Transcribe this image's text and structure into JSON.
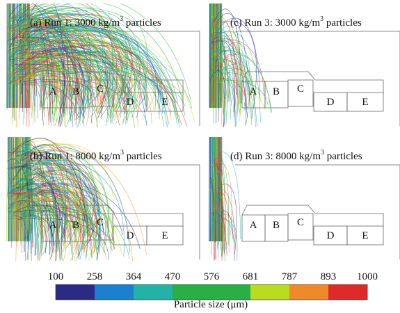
{
  "panels": [
    {
      "title": {
        "prefix": "(a) Run 1: 3000 kg/m",
        "sup": "3",
        "suffix": " particles"
      },
      "zones": [
        "A",
        "B",
        "C",
        "D",
        "E"
      ]
    },
    {
      "title": {
        "prefix": "(b) Run 1: 8000 kg/m",
        "sup": "3",
        "suffix": " particles"
      },
      "zones": [
        "A",
        "B",
        "C",
        "D",
        "E"
      ]
    },
    {
      "title": {
        "prefix": "(c) Run 3: 3000 kg/m",
        "sup": "3",
        "suffix": " particles"
      },
      "zones": [
        "A",
        "B",
        "C",
        "D",
        "E"
      ]
    },
    {
      "title": {
        "prefix": "(d) Run 3: 8000 kg/m",
        "sup": "3",
        "suffix": " particles"
      },
      "zones": [
        "A",
        "B",
        "C",
        "D",
        "E"
      ]
    }
  ],
  "colorbar": {
    "ticks": [
      100,
      258,
      364,
      470,
      576,
      681,
      787,
      893,
      1000
    ],
    "colors": [
      "#2b2a85",
      "#1c80d0",
      "#22b2a6",
      "#2aae46",
      "#2aae46",
      "#b9dc20",
      "#ef8a2a",
      "#df2a2a"
    ],
    "label": "Particle size (μm)"
  }
}
